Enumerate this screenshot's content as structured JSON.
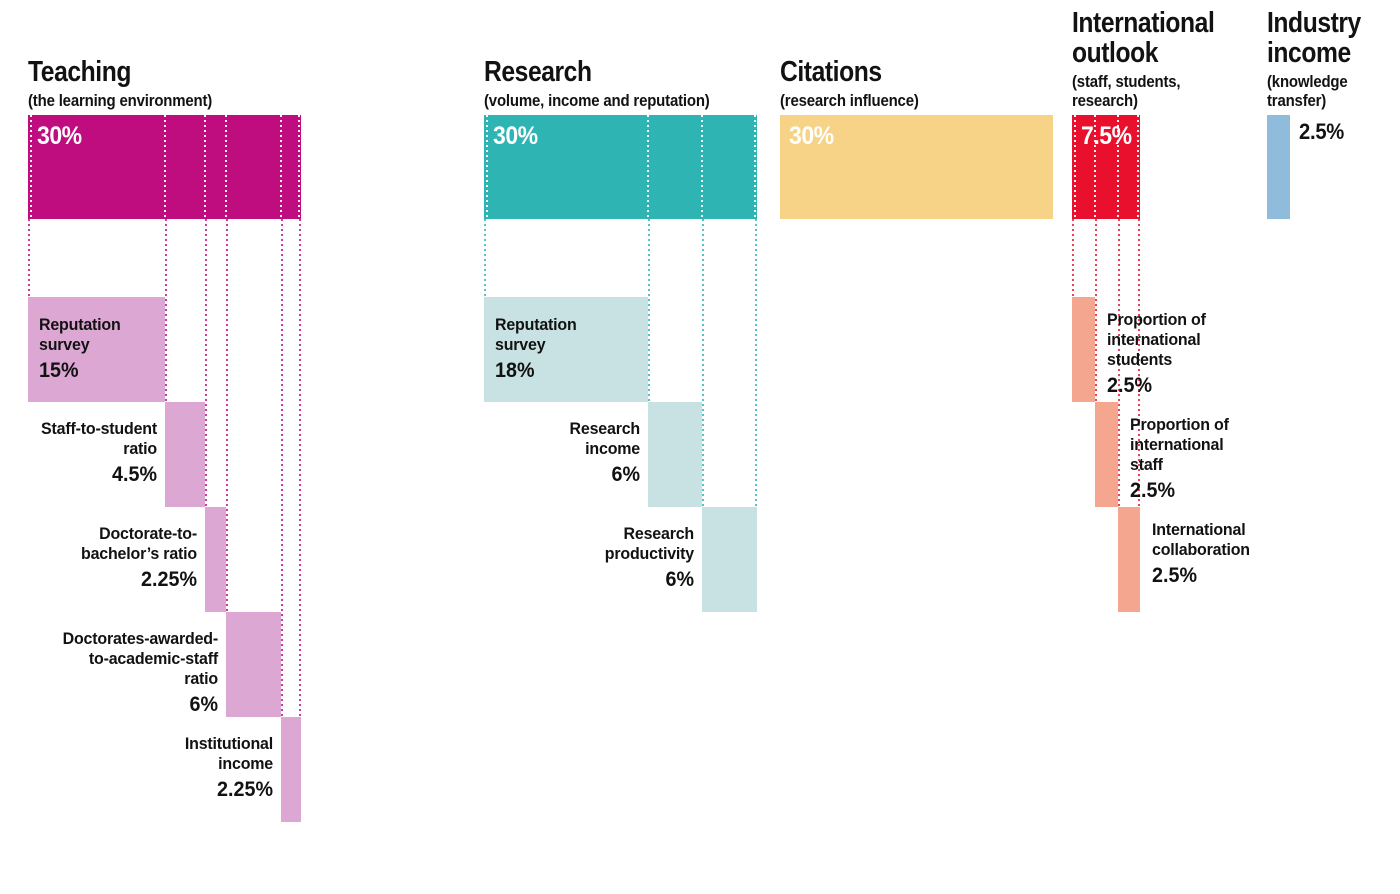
{
  "chart_data": {
    "type": "bar",
    "subtype": "waterfall-weighting-breakdown",
    "unit": "%",
    "grid": false,
    "legend": false,
    "categories": [
      {
        "name": "Teaching",
        "name_lines": [
          "Teaching"
        ],
        "subtitle": "(the learning environment)",
        "subtitle_lines": [
          "(the learning environment)"
        ],
        "total_value": 30,
        "total_label": "30%",
        "total_label_position": "inside",
        "color": "#bf0c7e",
        "component_color": "#dca7d3",
        "components": [
          {
            "label": "Reputation survey",
            "label_lines": [
              "Reputation",
              "survey"
            ],
            "value": 15,
            "value_label": "15%",
            "label_side": "inside"
          },
          {
            "label": "Staff-to-student ratio",
            "label_lines": [
              "Staff-to-student",
              "ratio"
            ],
            "value": 4.5,
            "value_label": "4.5%",
            "label_side": "left"
          },
          {
            "label": "Doctorate-to-bachelor’s ratio",
            "label_lines": [
              "Doctorate-to-",
              "bachelor’s ratio"
            ],
            "value": 2.25,
            "value_label": "2.25%",
            "label_side": "left"
          },
          {
            "label": "Doctorates-awarded-to-academic-staff ratio",
            "label_lines": [
              "Doctorates-awarded-",
              "to-academic-staff",
              "ratio"
            ],
            "value": 6,
            "value_label": "6%",
            "label_side": "left"
          },
          {
            "label": "Institutional income",
            "label_lines": [
              "Institutional",
              "income"
            ],
            "value": 2.25,
            "value_label": "2.25%",
            "label_side": "left"
          }
        ]
      },
      {
        "name": "Research",
        "name_lines": [
          "Research"
        ],
        "subtitle": "(volume, income and reputation)",
        "subtitle_lines": [
          "(volume, income and reputation)"
        ],
        "total_value": 30,
        "total_label": "30%",
        "total_label_position": "inside",
        "color": "#2fb4b4",
        "component_color": "#c8e1e3",
        "components": [
          {
            "label": "Reputation survey",
            "label_lines": [
              "Reputation",
              "survey"
            ],
            "value": 18,
            "value_label": "18%",
            "label_side": "inside"
          },
          {
            "label": "Research income",
            "label_lines": [
              "Research",
              "income"
            ],
            "value": 6,
            "value_label": "6%",
            "label_side": "left"
          },
          {
            "label": "Research productivity",
            "label_lines": [
              "Research",
              "productivity"
            ],
            "value": 6,
            "value_label": "6%",
            "label_side": "left"
          }
        ]
      },
      {
        "name": "Citations",
        "name_lines": [
          "Citations"
        ],
        "subtitle": "(research influence)",
        "subtitle_lines": [
          "(research influence)"
        ],
        "total_value": 30,
        "total_label": "30%",
        "total_label_position": "inside",
        "color": "#f6d387",
        "component_color": null,
        "components": []
      },
      {
        "name": "International outlook",
        "name_lines": [
          "International",
          "outlook"
        ],
        "subtitle": "(staff, students, research)",
        "subtitle_lines": [
          "(staff, students,",
          "research)"
        ],
        "total_value": 7.5,
        "total_label": "7.5%",
        "total_label_position": "inside",
        "color": "#e8102d",
        "component_color": "#f4a78e",
        "components": [
          {
            "label": "Proportion of international students",
            "label_lines": [
              "Proportion of",
              "international",
              "students"
            ],
            "value": 2.5,
            "value_label": "2.5%",
            "label_side": "right"
          },
          {
            "label": "Proportion of international staff",
            "label_lines": [
              "Proportion of",
              "international",
              "staff"
            ],
            "value": 2.5,
            "value_label": "2.5%",
            "label_side": "right"
          },
          {
            "label": "International collaboration",
            "label_lines": [
              "International",
              "collaboration"
            ],
            "value": 2.5,
            "value_label": "2.5%",
            "label_side": "right"
          }
        ]
      },
      {
        "name": "Industry income",
        "name_lines": [
          "Industry",
          "income"
        ],
        "subtitle": "(knowledge transfer)",
        "subtitle_lines": [
          "(knowledge",
          "transfer)"
        ],
        "total_value": 2.5,
        "total_label": "2.5%",
        "total_label_position": "outside-right",
        "color": "#8fbcdb",
        "component_color": null,
        "components": []
      }
    ]
  }
}
